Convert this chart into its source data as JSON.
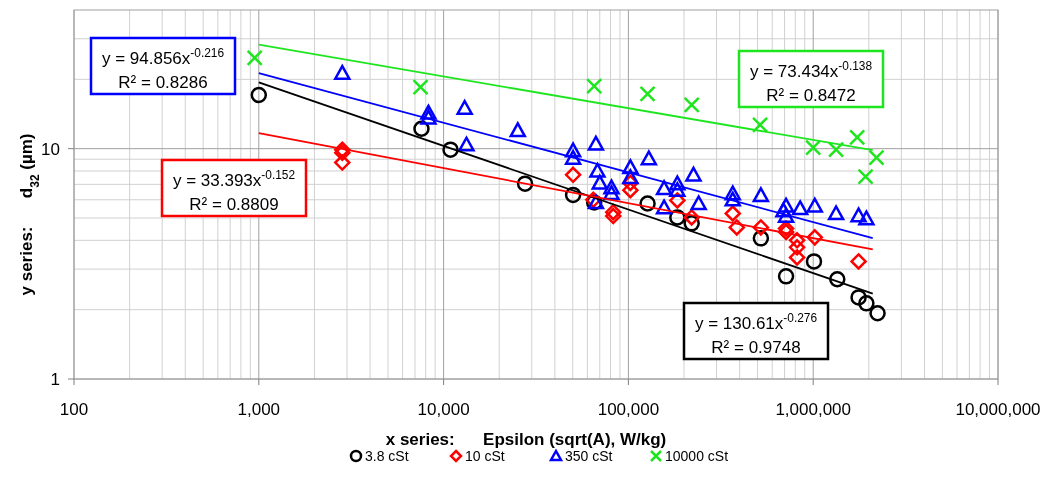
{
  "chart_data": {
    "type": "scatter",
    "xlabel": "x series:      Epsilon (sqrt(A), W/kg)",
    "ylabel": "y series:      d$_{32}$ (µm)",
    "log": "xy",
    "grid": true,
    "legend": "bottom",
    "xlim": [
      100,
      10000000
    ],
    "ylim": [
      1,
      40
    ],
    "xticks": [
      100,
      {
        "value": 1000,
        "label": "1,000"
      },
      {
        "value": 10000,
        "label": "10,000"
      },
      {
        "value": 100000,
        "label": "100,000"
      },
      {
        "value": 1000000,
        "label": "1,000,000"
      },
      {
        "value": 10000000,
        "label": "10,000,000"
      }
    ],
    "yticks": [
      1,
      10
    ],
    "series": [
      {
        "name": "3.8 cSt",
        "marker": "circle",
        "color": "#000000",
        "x": [
          1000,
          7590,
          10900,
          27600,
          50200,
          65300,
          127000,
          184000,
          220000,
          521000,
          713000,
          1010000,
          1350000,
          1760000,
          1940000,
          2230000
        ],
        "values": [
          17.1,
          12.2,
          9.9,
          7.05,
          6.3,
          5.84,
          5.78,
          5.03,
          4.74,
          4.08,
          2.79,
          3.24,
          2.71,
          2.26,
          2.13,
          1.93
        ]
      },
      {
        "name": "10 cSt",
        "marker": "diamond",
        "color": "#ff0000",
        "x": [
          2830,
          2830,
          2830,
          50200,
          64600,
          82800,
          82800,
          102500,
          102500,
          184000,
          220000,
          367000,
          386000,
          521000,
          713000,
          713000,
          818000,
          818000,
          818000,
          1020000,
          1760000
        ],
        "values": [
          9.9,
          9.6,
          8.7,
          7.7,
          6.0,
          5.3,
          5.1,
          7.1,
          6.6,
          5.96,
          5.03,
          5.23,
          4.55,
          4.55,
          4.5,
          4.35,
          4.0,
          3.73,
          3.37,
          4.12,
          3.24
        ]
      },
      {
        "name": "350 cSt",
        "marker": "triangle",
        "color": "#0000ff",
        "x": [
          2830,
          8280,
          8280,
          13000,
          13300,
          25200,
          50200,
          50200,
          66700,
          68000,
          70000,
          66700,
          81000,
          81000,
          102500,
          102500,
          129000,
          156000,
          156000,
          184000,
          184000,
          225000,
          240000,
          367000,
          367000,
          521000,
          690000,
          713000,
          713000,
          850000,
          1020000,
          1330000,
          1760000,
          1940000
        ],
        "values": [
          21.3,
          14.3,
          13.6,
          15.0,
          10.4,
          12.0,
          9.8,
          9.1,
          10.5,
          8.0,
          7.1,
          5.84,
          6.78,
          6.4,
          8.3,
          7.5,
          9.06,
          6.72,
          5.55,
          7.05,
          6.6,
          7.7,
          5.78,
          6.38,
          6.0,
          6.27,
          5.38,
          5.65,
          5.1,
          5.5,
          5.65,
          5.23,
          5.12,
          4.97
        ]
      },
      {
        "name": "10000 cSt",
        "marker": "cross",
        "color": "#1ee61e",
        "x": [
          950,
          7500,
          65300,
          127000,
          220000,
          516000,
          1000000,
          1330000,
          1730000,
          2200000,
          1920000
        ],
        "values": [
          24.8,
          18.5,
          18.7,
          17.3,
          15.5,
          12.7,
          10.1,
          9.9,
          11.2,
          9.15,
          7.57
        ]
      },
      {
        "type": "line",
        "color": "#000000",
        "x": [
          1000,
          2100000
        ],
        "values": [
          19.4,
          2.35
        ]
      },
      {
        "type": "line",
        "color": "#ff0000",
        "x": [
          1000,
          2100000
        ],
        "values": [
          11.69,
          3.65
        ]
      },
      {
        "type": "line",
        "color": "#0000ff",
        "x": [
          1000,
          2100000
        ],
        "values": [
          21.3,
          4.09
        ]
      },
      {
        "type": "line",
        "color": "#1ee61e",
        "x": [
          1000,
          2100000
        ],
        "values": [
          28.3,
          9.85
        ]
      }
    ],
    "annotations": [
      "y = 130.61x$^{-0.276}$\nR² = 0.9748",
      "y = 33.393x$^{-0.152}$\nR² = 0.8809",
      "y = 94.856x$^{-0.216}$\nR² = 0.8286",
      "y = 73.434x$^{-0.138}$\nR² = 0.8472"
    ]
  }
}
